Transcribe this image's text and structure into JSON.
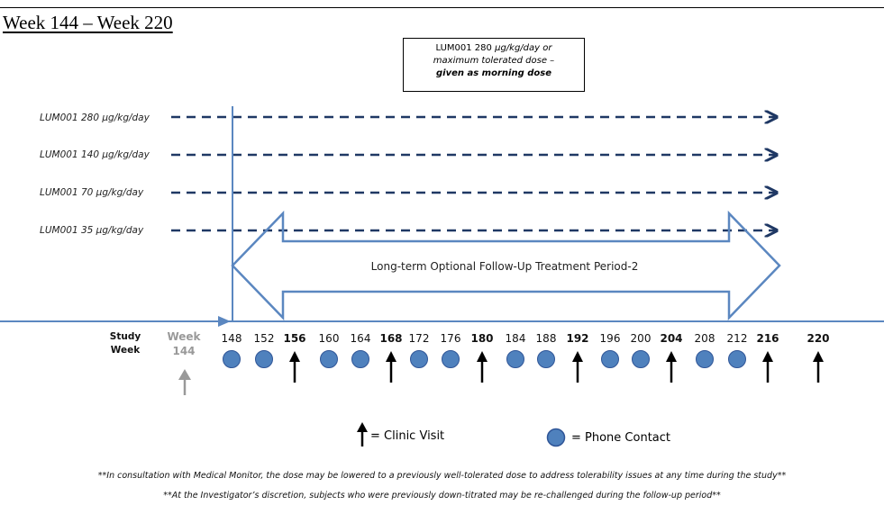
{
  "title": "Week 144 – Week 220",
  "dose_box": {
    "line1a": "LUM001 280 ",
    "line1b": "µg/kg/day or",
    "line2": "maximum tolerated dose –",
    "line3": "given as morning dose"
  },
  "arms": [
    "LUM001 280 µg/kg/day",
    "LUM001 140 µg/kg/day",
    "LUM001 70 µg/kg/day",
    "LUM001 35 µg/kg/day"
  ],
  "followup_label": "Long-term Optional Follow-Up Treatment Period-2",
  "study_week_label": [
    "Study",
    "Week"
  ],
  "baseline_week": [
    "Week",
    "144"
  ],
  "weeks": [
    {
      "label": "148",
      "type": "phone"
    },
    {
      "label": "152",
      "type": "phone"
    },
    {
      "label": "156",
      "type": "clinic"
    },
    {
      "label": "160",
      "type": "phone"
    },
    {
      "label": "164",
      "type": "phone"
    },
    {
      "label": "168",
      "type": "clinic"
    },
    {
      "label": "172",
      "type": "phone"
    },
    {
      "label": "176",
      "type": "phone"
    },
    {
      "label": "180",
      "type": "clinic"
    },
    {
      "label": "184",
      "type": "phone"
    },
    {
      "label": "188",
      "type": "phone"
    },
    {
      "label": "192",
      "type": "clinic"
    },
    {
      "label": "196",
      "type": "phone"
    },
    {
      "label": "200",
      "type": "phone"
    },
    {
      "label": "204",
      "type": "clinic"
    },
    {
      "label": "208",
      "type": "phone"
    },
    {
      "label": "212",
      "type": "phone"
    },
    {
      "label": "216",
      "type": "clinic"
    },
    {
      "label": "220",
      "type": "clinic"
    }
  ],
  "legend": {
    "clinic": "= Clinic Visit",
    "phone": "= Phone Contact"
  },
  "footnotes": [
    "**In consultation with Medical Monitor, the dose may be lowered to a previously well-tolerated dose to address tolerability issues at any time during the study**",
    "**At the Investigator’s discretion, subjects who were previously down-titrated may be re-challenged during the follow-up period**"
  ],
  "colors": {
    "dashed_arrow": "#1f3864",
    "outline": "#5b87c0",
    "phone_fill": "#4f81bd",
    "baseline_gray": "#999999"
  }
}
